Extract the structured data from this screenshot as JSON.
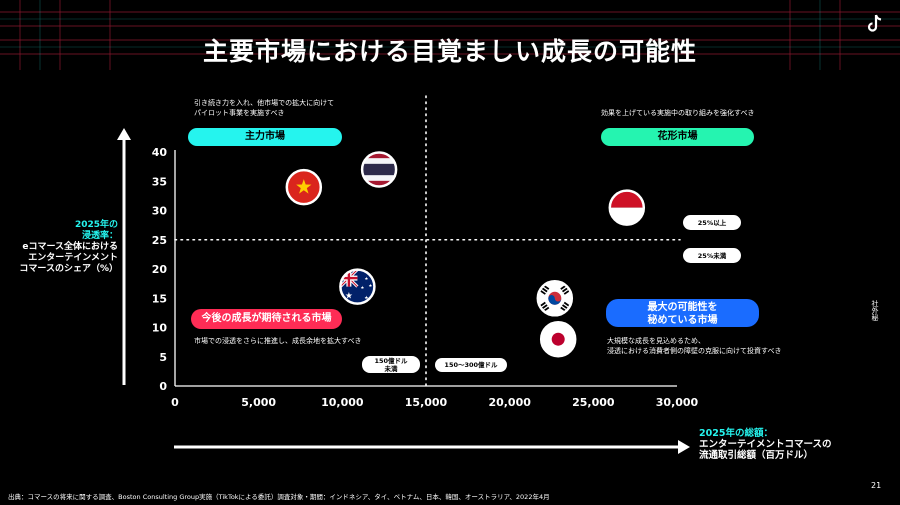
{
  "title": "主要市場における目覚ましい成長の可能性",
  "page_number": "21",
  "side_label": "社外秘",
  "footer": "出典：コマースの将来に関する調査、Boston Consulting Group実施（TikTokによる委託）調査対象・期間：インドネシア、タイ、ベトナム、日本、韓国、オーストラリア、2022年4月",
  "colors": {
    "cyan": "#25f4ee",
    "green": "#25f4b0",
    "red": "#fe2c55",
    "blue": "#1a6cff"
  },
  "y_axis_label": {
    "line1": "2025年の",
    "line2": "浸透率：",
    "line3": "eコマース全体における",
    "line4": "エンターテインメント",
    "line5": "コマースのシェア（%）"
  },
  "x_axis_label": {
    "line1": "2025年の総額：",
    "line2": "エンターテイメントコマースの",
    "line3": "流通取引総額（百万ドル）"
  },
  "quadrants": {
    "top_left": {
      "pill": "主力市場",
      "note": "引き続き力を入れ、他市場での拡大に向けて\nパイロット事業を実施すべき"
    },
    "top_right": {
      "pill": "花形市場",
      "note": "効果を上げている実施中の取り組みを強化すべき"
    },
    "bottom_left": {
      "pill": "今後の成長が期待される市場",
      "note": "市場での浸透をさらに推進し、成長余地を拡大すべき"
    },
    "bottom_right": {
      "pill_line1": "最大の可能性を",
      "pill_line2": "秘めている市場",
      "note": "大規模な成長を見込めるため、\n浸透における消費者側の障壁の克服に向けて投資すべき"
    }
  },
  "markers": {
    "above_25": "25%以上",
    "below_25": "25%未満",
    "under_150": "150億ドル\n未満",
    "range_150_300": "150〜300億ドル"
  },
  "chart_data": {
    "type": "scatter",
    "xlim": [
      0,
      30000
    ],
    "ylim": [
      0,
      40
    ],
    "xticks": [
      "0",
      "5,000",
      "10,000",
      "15,000",
      "20,000",
      "25,000",
      "30,000"
    ],
    "yticks": [
      "0",
      "5",
      "10",
      "15",
      "20",
      "25",
      "30",
      "35",
      "40"
    ],
    "thresholds": {
      "x": 15000,
      "y": 25
    },
    "points": [
      {
        "flag": "vietnam",
        "x": 7700,
        "y": 34
      },
      {
        "flag": "thailand",
        "x": 12200,
        "y": 37
      },
      {
        "flag": "indonesia",
        "x": 27000,
        "y": 30.5
      },
      {
        "flag": "australia",
        "x": 10900,
        "y": 17
      },
      {
        "flag": "south-korea",
        "x": 22700,
        "y": 15
      },
      {
        "flag": "japan",
        "x": 22900,
        "y": 8
      }
    ]
  }
}
